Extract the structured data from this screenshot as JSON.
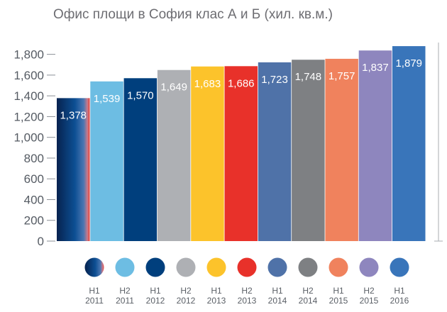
{
  "chart_data": {
    "type": "bar",
    "title": "Офис площи в София клас А и Б (хил. кв.м.)",
    "xlabel": "",
    "ylabel": "",
    "ylim": [
      0,
      1900
    ],
    "yticks": [
      0,
      200,
      400,
      600,
      800,
      1000,
      1200,
      1400,
      1600,
      1800
    ],
    "ytick_labels": [
      "0",
      "200",
      "400",
      "600",
      "800",
      "1,000",
      "1,200",
      "1,400",
      "1,600",
      "1,800"
    ],
    "grid": false,
    "legend_position": "bottom",
    "categories": [
      {
        "line1": "H1",
        "line2": "2011"
      },
      {
        "line1": "H2",
        "line2": "2011"
      },
      {
        "line1": "H1",
        "line2": "2012"
      },
      {
        "line1": "H2",
        "line2": "2012"
      },
      {
        "line1": "H1",
        "line2": "2013"
      },
      {
        "line1": "H2",
        "line2": "2013"
      },
      {
        "line1": "H1",
        "line2": "2014"
      },
      {
        "line1": "H2",
        "line2": "2014"
      },
      {
        "line1": "H1",
        "line2": "2015"
      },
      {
        "line1": "H2",
        "line2": "2015"
      },
      {
        "line1": "H1",
        "line2": "2016"
      }
    ],
    "values": [
      1378,
      1539,
      1570,
      1649,
      1683,
      1686,
      1723,
      1748,
      1757,
      1837,
      1879
    ],
    "value_labels": [
      "1,378",
      "1,539",
      "1,570",
      "1,649",
      "1,683",
      "1,686",
      "1,723",
      "1,748",
      "1,757",
      "1,837",
      "1,879"
    ],
    "colors": [
      "gradient-navy-blue-red",
      "#6dbde3",
      "#003f7d",
      "#aeb0b4",
      "#fcc32b",
      "#e8312a",
      "#4f72a8",
      "#7e8083",
      "#f0825d",
      "#8e86be",
      "#3975ba"
    ]
  }
}
